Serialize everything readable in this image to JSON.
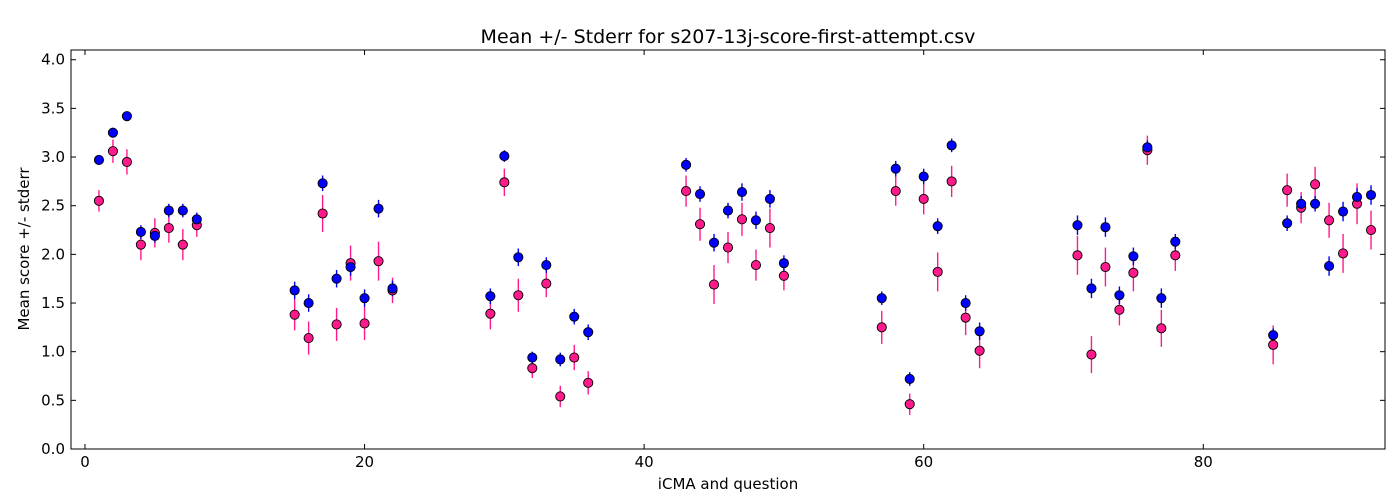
{
  "chart_data": {
    "type": "scatter",
    "title": "Mean +/- Stderr for s207-13j-score-first-attempt.csv",
    "xlabel": "iCMA and question",
    "ylabel": "Mean score +/- stderr",
    "xlim": [
      -1,
      93
    ],
    "ylim": [
      0.0,
      4.1
    ],
    "xticks": [
      0,
      20,
      40,
      60,
      80
    ],
    "xtick_labels": [
      "0",
      "20",
      "40",
      "60",
      "80"
    ],
    "yticks": [
      0.0,
      0.5,
      1.0,
      1.5,
      2.0,
      2.5,
      3.0,
      3.5,
      4.0
    ],
    "ytick_labels": [
      "0.0",
      "0.5",
      "1.0",
      "1.5",
      "2.0",
      "2.5",
      "3.0",
      "3.5",
      "4.0"
    ],
    "grid": false,
    "legend": "none",
    "series": [
      {
        "color": "#0000ff",
        "errcolor": "#0000ff",
        "points": [
          {
            "x": 1,
            "y": 2.97,
            "err": 0.04
          },
          {
            "x": 2,
            "y": 3.25,
            "err": 0.05
          },
          {
            "x": 3,
            "y": 3.42,
            "err": 0.04
          },
          {
            "x": 4,
            "y": 2.23,
            "err": 0.07
          },
          {
            "x": 5,
            "y": 2.19,
            "err": 0.07
          },
          {
            "x": 6,
            "y": 2.45,
            "err": 0.07
          },
          {
            "x": 7,
            "y": 2.45,
            "err": 0.07
          },
          {
            "x": 8,
            "y": 2.36,
            "err": 0.07
          },
          {
            "x": 15,
            "y": 1.63,
            "err": 0.09
          },
          {
            "x": 16,
            "y": 1.5,
            "err": 0.09
          },
          {
            "x": 17,
            "y": 2.73,
            "err": 0.08
          },
          {
            "x": 18,
            "y": 1.75,
            "err": 0.09
          },
          {
            "x": 19,
            "y": 1.87,
            "err": 0.09
          },
          {
            "x": 20,
            "y": 1.55,
            "err": 0.09
          },
          {
            "x": 21,
            "y": 2.47,
            "err": 0.09
          },
          {
            "x": 22,
            "y": 1.65,
            "err": 0.08
          },
          {
            "x": 29,
            "y": 1.57,
            "err": 0.08
          },
          {
            "x": 30,
            "y": 3.01,
            "err": 0.06
          },
          {
            "x": 31,
            "y": 1.97,
            "err": 0.09
          },
          {
            "x": 32,
            "y": 0.94,
            "err": 0.06
          },
          {
            "x": 33,
            "y": 1.89,
            "err": 0.08
          },
          {
            "x": 34,
            "y": 0.92,
            "err": 0.07
          },
          {
            "x": 35,
            "y": 1.36,
            "err": 0.08
          },
          {
            "x": 36,
            "y": 1.2,
            "err": 0.08
          },
          {
            "x": 43,
            "y": 2.92,
            "err": 0.07
          },
          {
            "x": 44,
            "y": 2.62,
            "err": 0.08
          },
          {
            "x": 45,
            "y": 2.12,
            "err": 0.09
          },
          {
            "x": 46,
            "y": 2.45,
            "err": 0.08
          },
          {
            "x": 47,
            "y": 2.64,
            "err": 0.09
          },
          {
            "x": 48,
            "y": 2.35,
            "err": 0.09
          },
          {
            "x": 49,
            "y": 2.57,
            "err": 0.09
          },
          {
            "x": 50,
            "y": 1.91,
            "err": 0.08
          },
          {
            "x": 57,
            "y": 1.55,
            "err": 0.07
          },
          {
            "x": 58,
            "y": 2.88,
            "err": 0.08
          },
          {
            "x": 59,
            "y": 0.72,
            "err": 0.07
          },
          {
            "x": 60,
            "y": 2.8,
            "err": 0.08
          },
          {
            "x": 61,
            "y": 2.29,
            "err": 0.08
          },
          {
            "x": 62,
            "y": 3.12,
            "err": 0.07
          },
          {
            "x": 63,
            "y": 1.5,
            "err": 0.08
          },
          {
            "x": 64,
            "y": 1.21,
            "err": 0.09
          },
          {
            "x": 71,
            "y": 2.3,
            "err": 0.1
          },
          {
            "x": 72,
            "y": 1.65,
            "err": 0.1
          },
          {
            "x": 73,
            "y": 2.28,
            "err": 0.1
          },
          {
            "x": 74,
            "y": 1.58,
            "err": 0.09
          },
          {
            "x": 75,
            "y": 1.98,
            "err": 0.09
          },
          {
            "x": 76,
            "y": 3.1,
            "err": 0.07
          },
          {
            "x": 77,
            "y": 1.55,
            "err": 0.1
          },
          {
            "x": 78,
            "y": 2.13,
            "err": 0.08
          },
          {
            "x": 85,
            "y": 1.17,
            "err": 0.07
          },
          {
            "x": 86,
            "y": 2.32,
            "err": 0.08
          },
          {
            "x": 87,
            "y": 2.52,
            "err": 0.08
          },
          {
            "x": 88,
            "y": 2.52,
            "err": 0.08
          },
          {
            "x": 89,
            "y": 1.88,
            "err": 0.1
          },
          {
            "x": 90,
            "y": 2.44,
            "err": 0.1
          },
          {
            "x": 91,
            "y": 2.59,
            "err": 0.09
          },
          {
            "x": 92,
            "y": 2.61,
            "err": 0.1
          }
        ]
      },
      {
        "color": "#ff1a8c",
        "errcolor": "#ff1a8c",
        "points": [
          {
            "x": 1,
            "y": 2.55,
            "err": 0.11
          },
          {
            "x": 2,
            "y": 3.06,
            "err": 0.12
          },
          {
            "x": 3,
            "y": 2.95,
            "err": 0.13
          },
          {
            "x": 4,
            "y": 2.1,
            "err": 0.16
          },
          {
            "x": 5,
            "y": 2.22,
            "err": 0.15
          },
          {
            "x": 6,
            "y": 2.27,
            "err": 0.15
          },
          {
            "x": 7,
            "y": 2.1,
            "err": 0.16
          },
          {
            "x": 8,
            "y": 2.3,
            "err": 0.12
          },
          {
            "x": 15,
            "y": 1.38,
            "err": 0.16
          },
          {
            "x": 16,
            "y": 1.14,
            "err": 0.17
          },
          {
            "x": 17,
            "y": 2.42,
            "err": 0.19
          },
          {
            "x": 18,
            "y": 1.28,
            "err": 0.17
          },
          {
            "x": 19,
            "y": 1.91,
            "err": 0.18
          },
          {
            "x": 20,
            "y": 1.29,
            "err": 0.17
          },
          {
            "x": 21,
            "y": 1.93,
            "err": 0.2
          },
          {
            "x": 22,
            "y": 1.63,
            "err": 0.13
          },
          {
            "x": 29,
            "y": 1.39,
            "err": 0.16
          },
          {
            "x": 30,
            "y": 2.74,
            "err": 0.14
          },
          {
            "x": 31,
            "y": 1.58,
            "err": 0.17
          },
          {
            "x": 32,
            "y": 0.83,
            "err": 0.1
          },
          {
            "x": 33,
            "y": 1.7,
            "err": 0.14
          },
          {
            "x": 34,
            "y": 0.54,
            "err": 0.11
          },
          {
            "x": 35,
            "y": 0.94,
            "err": 0.13
          },
          {
            "x": 36,
            "y": 0.68,
            "err": 0.12
          },
          {
            "x": 43,
            "y": 2.65,
            "err": 0.16
          },
          {
            "x": 44,
            "y": 2.31,
            "err": 0.17
          },
          {
            "x": 45,
            "y": 1.69,
            "err": 0.2
          },
          {
            "x": 46,
            "y": 2.07,
            "err": 0.16
          },
          {
            "x": 47,
            "y": 2.36,
            "err": 0.17
          },
          {
            "x": 48,
            "y": 1.89,
            "err": 0.16
          },
          {
            "x": 49,
            "y": 2.27,
            "err": 0.2
          },
          {
            "x": 50,
            "y": 1.78,
            "err": 0.15
          },
          {
            "x": 57,
            "y": 1.25,
            "err": 0.17
          },
          {
            "x": 58,
            "y": 2.65,
            "err": 0.15
          },
          {
            "x": 59,
            "y": 0.46,
            "err": 0.11
          },
          {
            "x": 60,
            "y": 2.57,
            "err": 0.16
          },
          {
            "x": 61,
            "y": 1.82,
            "err": 0.2
          },
          {
            "x": 62,
            "y": 2.75,
            "err": 0.16
          },
          {
            "x": 63,
            "y": 1.35,
            "err": 0.18
          },
          {
            "x": 64,
            "y": 1.01,
            "err": 0.18
          },
          {
            "x": 71,
            "y": 1.99,
            "err": 0.2
          },
          {
            "x": 72,
            "y": 0.97,
            "err": 0.19
          },
          {
            "x": 73,
            "y": 1.87,
            "err": 0.2
          },
          {
            "x": 74,
            "y": 1.43,
            "err": 0.16
          },
          {
            "x": 75,
            "y": 1.81,
            "err": 0.19
          },
          {
            "x": 76,
            "y": 3.07,
            "err": 0.15
          },
          {
            "x": 77,
            "y": 1.24,
            "err": 0.19
          },
          {
            "x": 78,
            "y": 1.99,
            "err": 0.16
          },
          {
            "x": 85,
            "y": 1.07,
            "err": 0.2
          },
          {
            "x": 86,
            "y": 2.66,
            "err": 0.17
          },
          {
            "x": 87,
            "y": 2.48,
            "err": 0.16
          },
          {
            "x": 88,
            "y": 2.72,
            "err": 0.18
          },
          {
            "x": 89,
            "y": 2.35,
            "err": 0.18
          },
          {
            "x": 90,
            "y": 2.01,
            "err": 0.2
          },
          {
            "x": 91,
            "y": 2.52,
            "err": 0.21
          },
          {
            "x": 92,
            "y": 2.25,
            "err": 0.2
          }
        ]
      }
    ]
  }
}
